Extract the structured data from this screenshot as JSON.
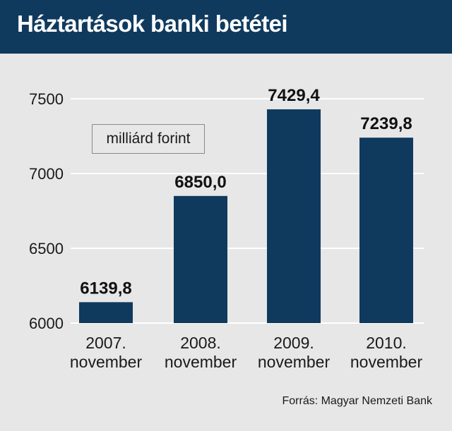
{
  "title": "Háztartások banki betétei",
  "unit_label": "milliárd forint",
  "source": "Forrás: Magyar Nemzeti Bank",
  "colors": {
    "header": "#0f3a5e",
    "bar": "#0f3a5e",
    "panel": "#e7e7e7",
    "grid": "#ffffff"
  },
  "chart_data": {
    "type": "bar",
    "categories": [
      [
        "2007.",
        "november"
      ],
      [
        "2008.",
        "november"
      ],
      [
        "2009.",
        "november"
      ],
      [
        "2010.",
        "november"
      ]
    ],
    "values": [
      6139.8,
      6850.0,
      7429.4,
      7239.8
    ],
    "value_labels": [
      "6139,8",
      "6850,0",
      "7429,4",
      "7239,8"
    ],
    "yticks": [
      6000,
      6500,
      7000,
      7500
    ],
    "ylim": [
      6000,
      7700
    ],
    "grid": true
  }
}
